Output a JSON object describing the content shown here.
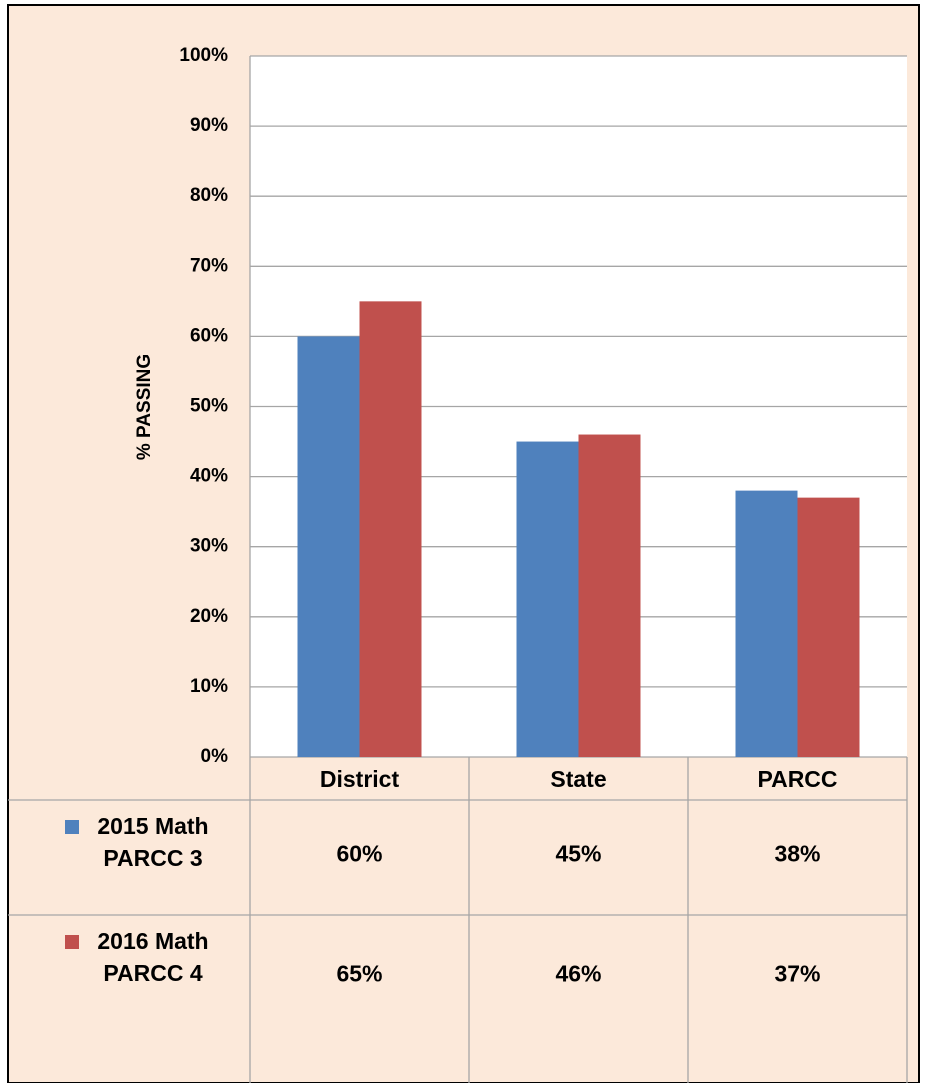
{
  "chart_data": {
    "type": "bar",
    "y_label": "% PASSING",
    "categories": [
      "District",
      "State",
      "PARCC"
    ],
    "series": [
      {
        "name": "2015 Math PARCC 3",
        "color": "#4f81bd",
        "values": [
          60,
          45,
          38
        ],
        "value_labels": [
          "60%",
          "45%",
          "38%"
        ]
      },
      {
        "name": "2016 Math PARCC 4",
        "color": "#c0504d",
        "values": [
          65,
          46,
          37
        ],
        "value_labels": [
          "65%",
          "46%",
          "37%"
        ]
      }
    ],
    "ylim": [
      0,
      100
    ],
    "yticks": [
      {
        "value": 0,
        "label": "0%"
      },
      {
        "value": 10,
        "label": "10%"
      },
      {
        "value": 20,
        "label": "20%"
      },
      {
        "value": 30,
        "label": "30%"
      },
      {
        "value": 40,
        "label": "40%"
      },
      {
        "value": 50,
        "label": "50%"
      },
      {
        "value": 60,
        "label": "60%"
      },
      {
        "value": 70,
        "label": "70%"
      },
      {
        "value": 80,
        "label": "80%"
      },
      {
        "value": 90,
        "label": "90%"
      },
      {
        "value": 100,
        "label": "100%"
      }
    ],
    "grid": true
  }
}
